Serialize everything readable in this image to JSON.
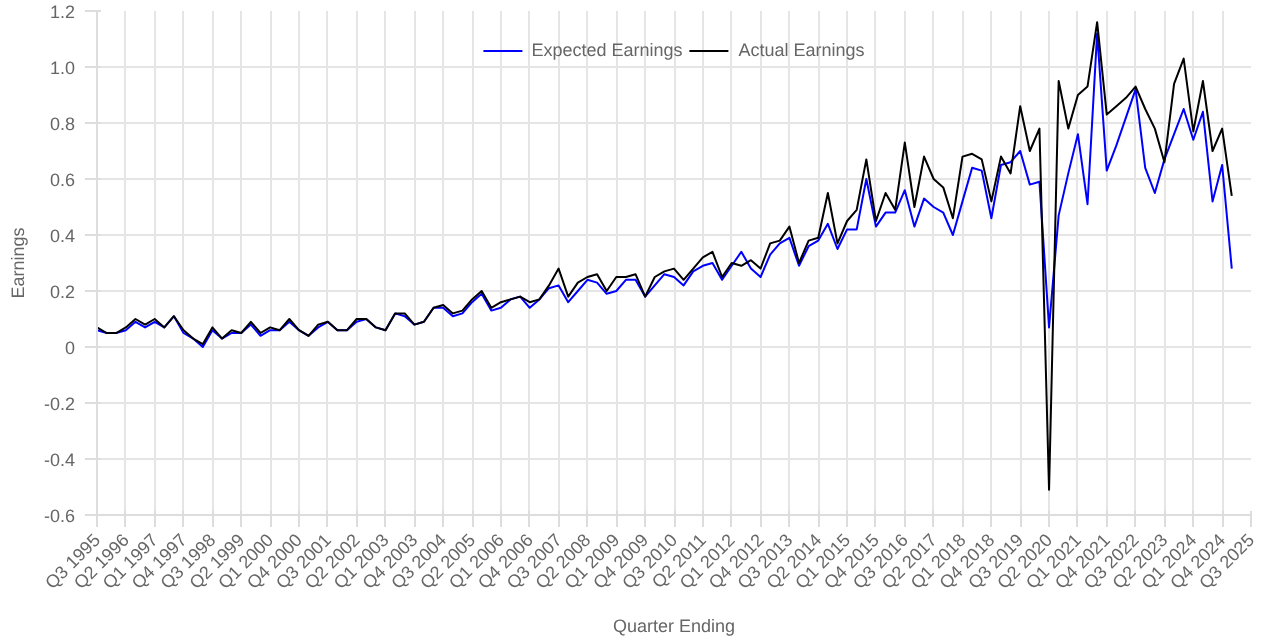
{
  "chart_data": {
    "type": "line",
    "xlabel": "Quarter Ending",
    "ylabel": "Earnings",
    "categories": [
      "Q3 1995",
      null,
      null,
      "Q2 1996",
      null,
      null,
      "Q1 1997",
      null,
      null,
      "Q4 1997",
      null,
      null,
      "Q3 1998",
      null,
      null,
      "Q2 1999",
      null,
      null,
      "Q1 2000",
      null,
      null,
      "Q4 2000",
      null,
      null,
      "Q3 2001",
      null,
      null,
      "Q2 2002",
      null,
      null,
      "Q1 2003",
      null,
      null,
      "Q4 2003",
      null,
      null,
      "Q3 2004",
      null,
      null,
      "Q2 2005",
      null,
      null,
      "Q1 2006",
      null,
      null,
      "Q4 2006",
      null,
      null,
      "Q3 2007",
      null,
      null,
      "Q2 2008",
      null,
      null,
      "Q1 2009",
      null,
      null,
      "Q4 2009",
      null,
      null,
      "Q3 2010",
      null,
      null,
      "Q2 2011",
      null,
      null,
      "Q1 2012",
      null,
      null,
      "Q4 2012",
      null,
      null,
      "Q3 2013",
      null,
      null,
      "Q2 2014",
      null,
      null,
      "Q1 2015",
      null,
      null,
      "Q4 2015",
      null,
      null,
      "Q3 2016",
      null,
      null,
      "Q2 2017",
      null,
      null,
      "Q1 2018",
      null,
      null,
      "Q4 2018",
      null,
      null,
      "Q3 2019",
      null,
      null,
      "Q2 2020",
      null,
      null,
      "Q1 2021",
      null,
      null,
      "Q4 2021",
      null,
      null,
      "Q3 2022",
      null,
      null,
      "Q2 2023",
      null,
      null,
      "Q1 2024",
      null,
      null,
      "Q4 2024",
      null,
      null,
      "Q3 2025"
    ],
    "series": [
      {
        "name": "Expected Earnings",
        "color": "#0000ff",
        "values": [
          0.06,
          0.05,
          0.05,
          0.06,
          0.09,
          0.07,
          0.09,
          0.07,
          0.11,
          0.05,
          0.03,
          0.0,
          0.06,
          0.03,
          0.05,
          0.05,
          0.08,
          0.04,
          0.06,
          0.06,
          0.09,
          0.06,
          0.04,
          0.07,
          0.09,
          0.06,
          0.06,
          0.09,
          0.1,
          0.07,
          0.06,
          0.12,
          0.11,
          0.08,
          0.09,
          0.14,
          0.14,
          0.11,
          0.12,
          0.16,
          0.19,
          0.13,
          0.14,
          0.17,
          0.18,
          0.14,
          0.17,
          0.21,
          0.22,
          0.16,
          0.2,
          0.24,
          0.23,
          0.19,
          0.2,
          0.24,
          0.24,
          0.18,
          0.22,
          0.26,
          0.25,
          0.22,
          0.27,
          0.29,
          0.3,
          0.24,
          0.29,
          0.34,
          0.28,
          0.25,
          0.33,
          0.37,
          0.39,
          0.29,
          0.36,
          0.38,
          0.44,
          0.35,
          0.42,
          0.42,
          0.6,
          0.43,
          0.48,
          0.48,
          0.56,
          0.43,
          0.53,
          0.5,
          0.48,
          0.4,
          0.52,
          0.64,
          0.63,
          0.46,
          0.65,
          0.66,
          0.7,
          0.58,
          0.59,
          0.07,
          0.47,
          0.62,
          0.76,
          0.51,
          1.12,
          0.63,
          0.72,
          0.82,
          0.92,
          0.64,
          0.55,
          0.67,
          0.76,
          0.85,
          0.74,
          0.84,
          0.52,
          0.65,
          0.28,
          null,
          null
        ]
      },
      {
        "name": "Actual Earnings",
        "color": "#000000",
        "values": [
          0.07,
          0.05,
          0.05,
          0.07,
          0.1,
          0.08,
          0.1,
          0.07,
          0.11,
          0.06,
          0.03,
          0.01,
          0.07,
          0.03,
          0.06,
          0.05,
          0.09,
          0.05,
          0.07,
          0.06,
          0.1,
          0.06,
          0.04,
          0.08,
          0.09,
          0.06,
          0.06,
          0.1,
          0.1,
          0.07,
          0.06,
          0.12,
          0.12,
          0.08,
          0.09,
          0.14,
          0.15,
          0.12,
          0.13,
          0.17,
          0.2,
          0.14,
          0.16,
          0.17,
          0.18,
          0.16,
          0.17,
          0.22,
          0.28,
          0.18,
          0.23,
          0.25,
          0.26,
          0.2,
          0.25,
          0.25,
          0.26,
          0.18,
          0.25,
          0.27,
          0.28,
          0.24,
          0.28,
          0.32,
          0.34,
          0.25,
          0.3,
          0.29,
          0.31,
          0.28,
          0.37,
          0.38,
          0.43,
          0.3,
          0.38,
          0.39,
          0.55,
          0.37,
          0.45,
          0.49,
          0.67,
          0.45,
          0.55,
          0.49,
          0.73,
          0.5,
          0.68,
          0.6,
          0.57,
          0.46,
          0.68,
          0.69,
          0.67,
          0.52,
          0.68,
          0.62,
          0.86,
          0.7,
          0.78,
          -0.51,
          0.95,
          0.78,
          0.9,
          0.93,
          1.16,
          0.83,
          0.86,
          0.89,
          0.93,
          0.85,
          0.78,
          0.66,
          0.94,
          1.03,
          0.77,
          0.95,
          0.7,
          0.78,
          0.54,
          null,
          null
        ]
      }
    ],
    "ylim": [
      -0.6,
      1.2
    ],
    "yticks": [
      -0.6,
      -0.4,
      -0.2,
      0,
      0.2,
      0.4,
      0.6,
      0.8,
      {
        "value": 1,
        "label": "1.0"
      },
      1.2
    ],
    "grid": true,
    "legend": "top",
    "marker": "none",
    "line_style": "solid"
  }
}
